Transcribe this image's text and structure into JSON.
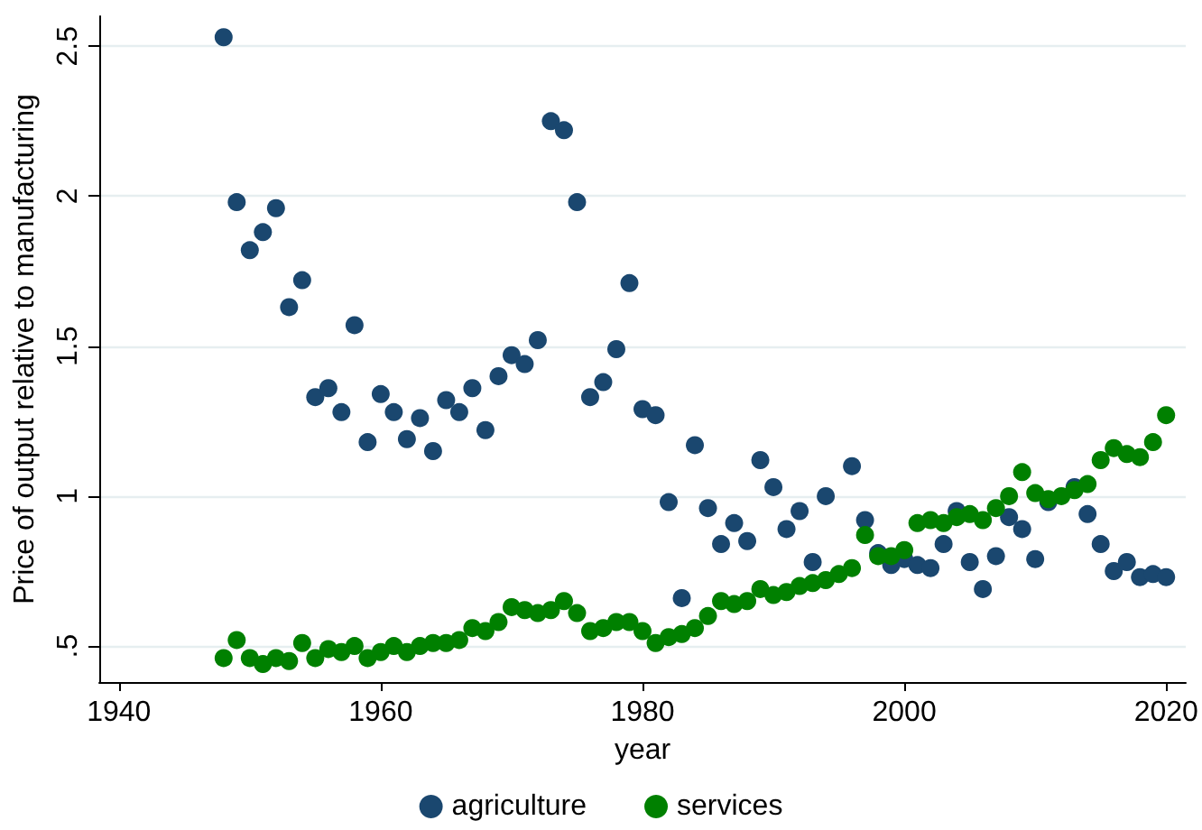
{
  "chart_data": {
    "type": "scatter",
    "xlabel": "year",
    "ylabel": "Price of output relative to manufacturing",
    "x": [
      1948,
      1949,
      1950,
      1951,
      1952,
      1953,
      1954,
      1955,
      1956,
      1957,
      1958,
      1959,
      1960,
      1961,
      1962,
      1963,
      1964,
      1965,
      1966,
      1967,
      1968,
      1969,
      1970,
      1971,
      1972,
      1973,
      1974,
      1975,
      1976,
      1977,
      1978,
      1979,
      1980,
      1981,
      1982,
      1983,
      1984,
      1985,
      1986,
      1987,
      1988,
      1989,
      1990,
      1991,
      1992,
      1993,
      1994,
      1995,
      1996,
      1997,
      1998,
      1999,
      2000,
      2001,
      2002,
      2003,
      2004,
      2005,
      2006,
      2007,
      2008,
      2009,
      2010,
      2011,
      2012,
      2013,
      2014,
      2015,
      2016,
      2017,
      2018,
      2019,
      2020
    ],
    "series": [
      {
        "name": "agriculture",
        "color": "#1a476f",
        "values": [
          2.53,
          1.98,
          1.82,
          1.88,
          1.96,
          1.63,
          1.72,
          1.33,
          1.36,
          1.28,
          1.57,
          1.18,
          1.34,
          1.28,
          1.19,
          1.26,
          1.15,
          1.32,
          1.28,
          1.36,
          1.22,
          1.4,
          1.47,
          1.44,
          1.52,
          2.25,
          2.22,
          1.98,
          1.33,
          1.38,
          1.49,
          1.71,
          1.29,
          1.27,
          0.98,
          0.66,
          1.17,
          0.96,
          0.84,
          0.91,
          0.85,
          1.12,
          1.03,
          0.89,
          0.95,
          0.78,
          1.0,
          null,
          1.1,
          0.92,
          0.81,
          0.77,
          0.79,
          0.77,
          0.76,
          0.84,
          0.95,
          0.78,
          0.69,
          0.8,
          0.93,
          0.89,
          0.79,
          0.98,
          null,
          1.03,
          0.94,
          0.84,
          0.75,
          0.78,
          0.73,
          0.74,
          0.73
        ]
      },
      {
        "name": "services",
        "color": "#008000",
        "values": [
          0.46,
          0.52,
          0.46,
          0.44,
          0.46,
          0.45,
          0.51,
          0.46,
          0.49,
          0.48,
          0.5,
          0.46,
          0.48,
          0.5,
          0.48,
          0.5,
          0.51,
          0.51,
          0.52,
          0.56,
          0.55,
          0.58,
          0.63,
          0.62,
          0.61,
          0.62,
          0.65,
          0.61,
          0.55,
          0.56,
          0.58,
          0.58,
          0.55,
          0.51,
          0.53,
          0.54,
          0.56,
          0.6,
          0.65,
          0.64,
          0.65,
          0.69,
          0.67,
          0.68,
          0.7,
          0.71,
          0.72,
          0.74,
          0.76,
          0.87,
          0.8,
          0.8,
          0.82,
          0.91,
          0.92,
          0.91,
          0.93,
          0.94,
          0.92,
          0.96,
          1.0,
          1.08,
          1.01,
          0.99,
          1.0,
          1.02,
          1.04,
          1.12,
          1.16,
          1.14,
          1.13,
          1.18,
          1.27
        ]
      }
    ],
    "xlim": [
      1938.5,
      2021.5
    ],
    "xticks": [
      1940,
      1960,
      1980,
      2000,
      2020
    ],
    "ylim": [
      0.38,
      2.6
    ],
    "yticks": [
      {
        "value": 0.5,
        "label": ".5"
      },
      1,
      1.5,
      2,
      2.5
    ],
    "grid": "y",
    "legend": "bottom",
    "marker": "circle"
  }
}
